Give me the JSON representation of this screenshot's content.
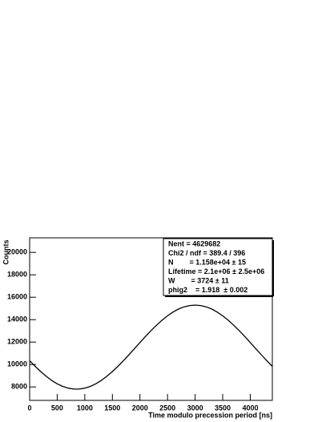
{
  "chart_data": {
    "type": "line",
    "x_label": "Time modulo precession period [ns]",
    "y_label": "Counts",
    "x": [
      0,
      100,
      200,
      300,
      400,
      500,
      600,
      700,
      800,
      900,
      1000,
      1100,
      1200,
      1300,
      1400,
      1500,
      1600,
      1700,
      1800,
      1900,
      2000,
      2100,
      2200,
      2300,
      2400,
      2500,
      2600,
      2700,
      2800,
      2900,
      3000,
      3100,
      3200,
      3300,
      3400,
      3500,
      3600,
      3700,
      3800,
      3900,
      4000,
      4100,
      4200,
      4300,
      4400
    ],
    "series": [
      {
        "color": "#000000",
        "values": [
          10341,
          9835,
          9368,
          8947,
          8582,
          8280,
          8048,
          7890,
          7810,
          7810,
          7890,
          8048,
          8280,
          8582,
          8947,
          9368,
          9835,
          10341,
          10870,
          11413,
          11960,
          12498,
          13018,
          13503,
          13947,
          14342,
          14678,
          14951,
          15141,
          15260,
          15300,
          15260,
          15141,
          14951,
          14678,
          14342,
          13947,
          13503,
          13018,
          12498,
          11960,
          11413,
          10870,
          10341,
          9835
        ]
      }
    ],
    "xlim": [
      0,
      4400
    ],
    "ylim": [
      6800,
      21300
    ],
    "xticks": [
      0,
      500,
      1000,
      1500,
      2000,
      2500,
      3000,
      3500,
      4000
    ],
    "yticks": [
      8000,
      10000,
      12000,
      14000,
      16000,
      18000,
      20000
    ],
    "stats": [
      "Nent = 4629682",
      "Chi2 / ndf = 389.4 / 396",
      "N        = 1.158e+04 ± 15",
      "Lifetime = 2.1e+06 ± 2.5e+06",
      "W        = 3724 ± 11",
      "phig2    = 1.918  ± 0.002"
    ]
  }
}
